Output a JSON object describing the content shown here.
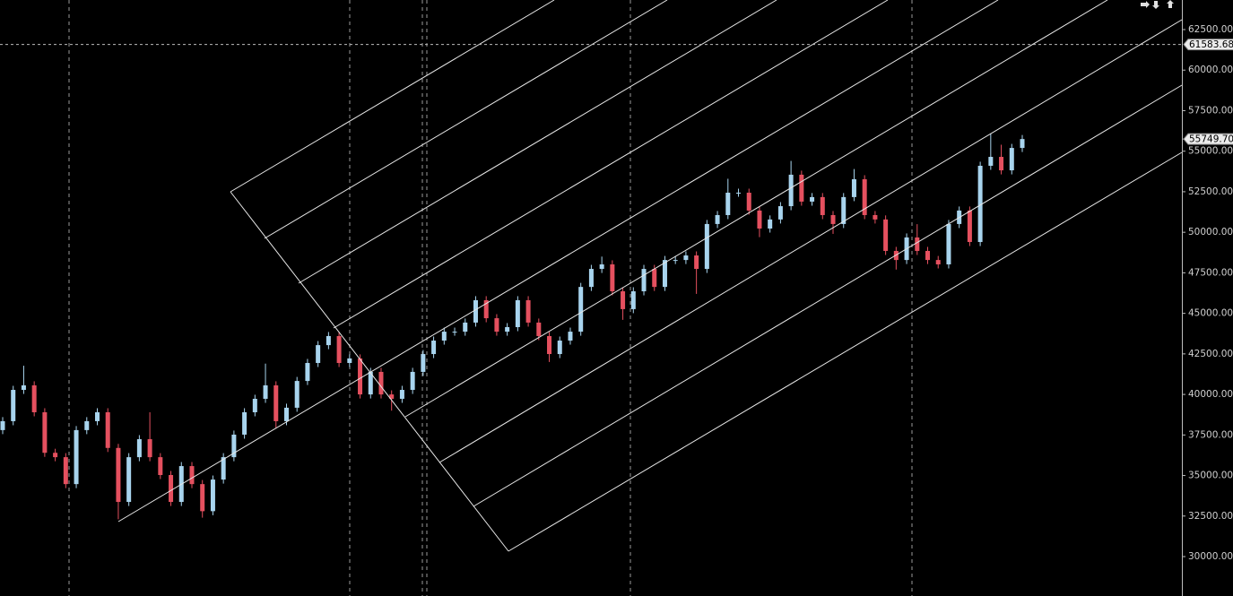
{
  "chart_data": {
    "type": "candlestick",
    "up_color": "#a8d4ee",
    "down_color": "#e5505f",
    "ylim": [
      27569,
      64324
    ],
    "yticks": [
      {
        "value": 30000,
        "label": "30000.00"
      },
      {
        "value": 32500,
        "label": "32500.00"
      },
      {
        "value": 35000,
        "label": "35000.00"
      },
      {
        "value": 37500,
        "label": "37500.00"
      },
      {
        "value": 40000,
        "label": "40000.00"
      },
      {
        "value": 42500,
        "label": "42500.00"
      },
      {
        "value": 45000,
        "label": "45000.00"
      },
      {
        "value": 47500,
        "label": "47500.00"
      },
      {
        "value": 50000,
        "label": "50000.00"
      },
      {
        "value": 52500,
        "label": "52500.00"
      },
      {
        "value": 55000,
        "label": "55000.00"
      },
      {
        "value": 57500,
        "label": "57500.00"
      },
      {
        "value": 60000,
        "label": "60000.00"
      },
      {
        "value": 62500,
        "label": "62500.00"
      }
    ],
    "price_lines": [
      {
        "value": 61583.68,
        "label": "61583.68",
        "dashed": true
      },
      {
        "value": 55749.7,
        "label": "55749.70",
        "dashed": false
      }
    ],
    "open": [
      37800,
      38350,
      40280,
      40560,
      38900,
      36400,
      36130,
      34470,
      37800,
      38350,
      38900,
      36700,
      33370,
      36130,
      37240,
      36130,
      35030,
      33370,
      35580,
      34470,
      32800,
      34750,
      36130,
      37520,
      38900,
      39730,
      40560,
      38350,
      39180,
      40830,
      41940,
      43040,
      43600,
      41940,
      42220,
      40000,
      41390,
      40000,
      39730,
      40280,
      41390,
      42490,
      43320,
      43870,
      43870,
      44430,
      45810,
      44700,
      43870,
      44150,
      45810,
      44430,
      43600,
      42490,
      43320,
      43870,
      46630,
      47740,
      48020,
      46360,
      45260,
      46360,
      47740,
      46630,
      48290,
      48290,
      48570,
      47740,
      50510,
      51060,
      52440,
      52440,
      51340,
      50230,
      50790,
      51610,
      53550,
      51890,
      52170,
      51060,
      50510,
      52170,
      53270,
      51060,
      50790,
      48850,
      48290,
      49680,
      48850,
      48290,
      48020,
      50510,
      51340,
      49400,
      54100,
      54650,
      53820,
      55200
    ],
    "high": [
      38600,
      40530,
      41770,
      40810,
      39150,
      36650,
      36380,
      38050,
      38600,
      39150,
      39150,
      36950,
      36380,
      37490,
      38900,
      36380,
      35280,
      35830,
      35830,
      34720,
      35000,
      36380,
      37770,
      39150,
      39980,
      41900,
      40810,
      39430,
      41080,
      42190,
      43290,
      43850,
      43850,
      42470,
      42470,
      41640,
      41640,
      40250,
      40530,
      41640,
      42740,
      43570,
      44120,
      44120,
      44680,
      46060,
      46060,
      44950,
      44400,
      46060,
      46060,
      44680,
      43850,
      43570,
      44120,
      46880,
      47990,
      48500,
      48270,
      46610,
      46610,
      47990,
      47990,
      48540,
      48540,
      48820,
      48820,
      50760,
      51310,
      53300,
      52690,
      52690,
      51590,
      51040,
      51860,
      54400,
      53800,
      52420,
      52420,
      51310,
      52420,
      53900,
      53520,
      51310,
      51040,
      49100,
      49930,
      50500,
      49100,
      48540,
      50760,
      51590,
      51590,
      54350,
      56100,
      55400,
      55450,
      56000
    ],
    "low": [
      37550,
      38100,
      40030,
      38650,
      36150,
      35880,
      34220,
      34220,
      37550,
      38100,
      36450,
      32300,
      33120,
      35880,
      35880,
      34780,
      33120,
      33120,
      34220,
      32400,
      32550,
      34500,
      35880,
      37270,
      38650,
      39480,
      37900,
      38100,
      38930,
      40580,
      41690,
      42790,
      41690,
      41690,
      39750,
      39750,
      39750,
      39000,
      39480,
      40030,
      41140,
      42240,
      43070,
      43620,
      43620,
      44180,
      44450,
      43620,
      43620,
      43900,
      44180,
      43350,
      42000,
      42240,
      43070,
      43620,
      46380,
      47490,
      46110,
      44600,
      45010,
      46110,
      46380,
      46380,
      48040,
      48040,
      46200,
      47490,
      50260,
      50810,
      52190,
      51090,
      49700,
      49980,
      50540,
      51360,
      51640,
      51640,
      50810,
      49900,
      50260,
      51920,
      50810,
      50540,
      48600,
      47700,
      48040,
      48600,
      48040,
      47770,
      47770,
      50260,
      49150,
      49150,
      53850,
      53570,
      53570,
      54950
    ],
    "close": [
      38350,
      40280,
      40560,
      38900,
      36400,
      36130,
      34470,
      37800,
      38350,
      38900,
      36700,
      33370,
      36130,
      37240,
      36130,
      35030,
      33370,
      35580,
      34470,
      32800,
      34750,
      36130,
      37520,
      38900,
      39730,
      40560,
      38350,
      39180,
      40830,
      41940,
      43040,
      43600,
      41940,
      42220,
      40000,
      41390,
      40000,
      39730,
      40280,
      41390,
      42490,
      43320,
      43870,
      43870,
      44430,
      45810,
      44700,
      43870,
      44150,
      45810,
      44430,
      43600,
      42490,
      43320,
      43870,
      46630,
      47740,
      48020,
      46360,
      45260,
      46360,
      47740,
      46630,
      48290,
      48290,
      48570,
      47740,
      50510,
      51060,
      52440,
      52440,
      51340,
      50230,
      50790,
      51610,
      53550,
      51890,
      52170,
      51060,
      50510,
      52170,
      53270,
      51060,
      50790,
      48850,
      48290,
      49680,
      48850,
      48290,
      48020,
      50510,
      51340,
      49400,
      54100,
      54650,
      53820,
      55200,
      55749.7
    ]
  }
}
